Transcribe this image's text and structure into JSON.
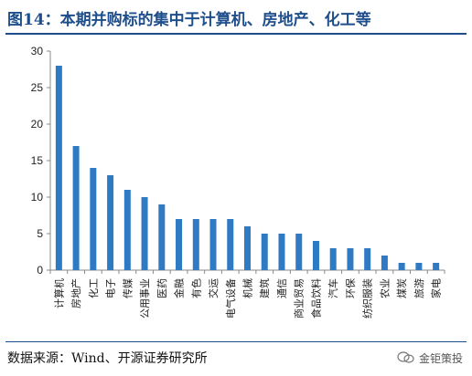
{
  "title": "图14：本期并购标的集中于计算机、房地产、化工等",
  "source": "数据来源：Wind、开源证券研究所",
  "watermark": "金钜策投",
  "chart_data": {
    "type": "bar",
    "categories": [
      "计算机",
      "房地产",
      "化工",
      "电子",
      "传媒",
      "公用事业",
      "医药",
      "金融",
      "有色",
      "交运",
      "电气设备",
      "机械",
      "建筑",
      "通信",
      "商业贸易",
      "食品饮料",
      "汽车",
      "环保",
      "纺织服装",
      "农业",
      "煤炭",
      "旅游",
      "家电"
    ],
    "values": [
      28,
      17,
      14,
      13,
      11,
      10,
      9,
      7,
      7,
      7,
      7,
      6,
      5,
      5,
      5,
      4,
      3,
      3,
      3,
      2,
      1,
      1,
      1
    ],
    "ylim": [
      0,
      30
    ],
    "yticks": [
      0,
      5,
      10,
      15,
      20,
      25,
      30
    ],
    "bar_color": "#2e7ac3",
    "grid": false,
    "legend": false
  }
}
